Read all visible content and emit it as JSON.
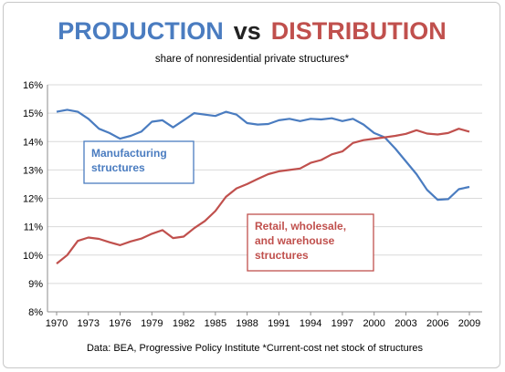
{
  "colors": {
    "production": "#4a7cc0",
    "distribution": "#c0504d",
    "vs": "#222222",
    "grid": "#d9d9d9"
  },
  "header": {
    "title_part1": "PRODUCTION",
    "title_vs": "vs",
    "title_part2": "DISTRIBUTION",
    "subtitle": "share of nonresidential private structures*"
  },
  "source_note": "Data: BEA, Progressive Policy Institute *Current-cost net stock of structures",
  "chart_data": {
    "type": "line",
    "title": "PRODUCTION vs DISTRIBUTION",
    "subtitle": "share of nonresidential private structures*",
    "ylim": [
      8,
      16
    ],
    "y_ticks": [
      "8%",
      "9%",
      "10%",
      "11%",
      "12%",
      "13%",
      "14%",
      "15%",
      "16%"
    ],
    "x_tick_labels": [
      "1970",
      "1973",
      "1976",
      "1979",
      "1982",
      "1985",
      "1988",
      "1991",
      "1994",
      "1997",
      "2000",
      "2003",
      "2006",
      "2009"
    ],
    "grid": "horizontal",
    "x": [
      1970,
      1971,
      1972,
      1973,
      1974,
      1975,
      1976,
      1977,
      1978,
      1979,
      1980,
      1981,
      1982,
      1983,
      1984,
      1985,
      1986,
      1987,
      1988,
      1989,
      1990,
      1991,
      1992,
      1993,
      1994,
      1995,
      1996,
      1997,
      1998,
      1999,
      2000,
      2001,
      2002,
      2003,
      2004,
      2005,
      2006,
      2007,
      2008,
      2009
    ],
    "series": [
      {
        "name": "Manufacturing structures",
        "label_lines": [
          "Manufacturing",
          "structures"
        ],
        "color": "#4a7cc0",
        "values": [
          15.05,
          15.12,
          15.05,
          14.8,
          14.45,
          14.3,
          14.1,
          14.2,
          14.35,
          14.7,
          14.75,
          14.5,
          14.75,
          15.0,
          14.95,
          14.9,
          15.05,
          14.95,
          14.65,
          14.6,
          14.62,
          14.75,
          14.8,
          14.72,
          14.8,
          14.78,
          14.82,
          14.72,
          14.8,
          14.6,
          14.3,
          14.15,
          13.75,
          13.3,
          12.85,
          12.3,
          11.95,
          11.97,
          12.32,
          12.4
        ]
      },
      {
        "name": "Retail, wholesale, and warehouse structures",
        "label_lines": [
          "Retail, wholesale,",
          "and warehouse",
          "structures"
        ],
        "color": "#c0504d",
        "values": [
          9.7,
          10.0,
          10.5,
          10.62,
          10.57,
          10.45,
          10.35,
          10.48,
          10.58,
          10.75,
          10.88,
          10.6,
          10.65,
          10.95,
          11.2,
          11.55,
          12.05,
          12.35,
          12.5,
          12.68,
          12.85,
          12.95,
          13.0,
          13.05,
          13.25,
          13.35,
          13.55,
          13.65,
          13.95,
          14.05,
          14.1,
          14.15,
          14.2,
          14.27,
          14.4,
          14.28,
          14.25,
          14.3,
          14.45,
          14.35
        ]
      }
    ]
  }
}
